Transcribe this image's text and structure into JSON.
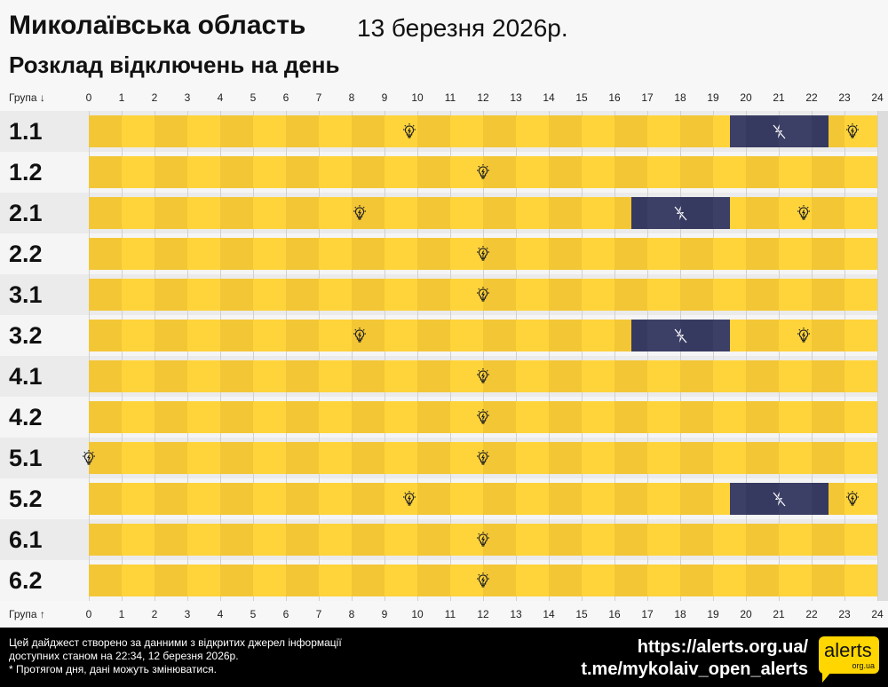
{
  "header": {
    "region": "Миколаївська область",
    "date": "13 березня 2026р.",
    "subtitle": "Розклад відключень на день"
  },
  "axis": {
    "top_label": "Група ↓",
    "bottom_label": "Група ↑",
    "hours": [
      "0",
      "1",
      "2",
      "3",
      "4",
      "5",
      "6",
      "7",
      "8",
      "9",
      "10",
      "11",
      "12",
      "13",
      "14",
      "15",
      "16",
      "17",
      "18",
      "19",
      "20",
      "21",
      "22",
      "23",
      "24"
    ]
  },
  "colors": {
    "on": "#ffd43a",
    "on_dark": "#f3c636",
    "off": "#3c3f66",
    "off_dark": "#363a60"
  },
  "icons": {
    "on": "lightbulb-icon",
    "off": "power-off-icon"
  },
  "groups": [
    {
      "name": "1.1",
      "segments": [
        {
          "state": "on",
          "from": 0,
          "to": 19.5
        },
        {
          "state": "off",
          "from": 19.5,
          "to": 22.5
        },
        {
          "state": "on",
          "from": 22.5,
          "to": 24
        }
      ]
    },
    {
      "name": "1.2",
      "segments": [
        {
          "state": "on",
          "from": 0,
          "to": 24
        }
      ]
    },
    {
      "name": "2.1",
      "segments": [
        {
          "state": "on",
          "from": 0,
          "to": 16.5
        },
        {
          "state": "off",
          "from": 16.5,
          "to": 19.5
        },
        {
          "state": "on",
          "from": 19.5,
          "to": 24
        }
      ]
    },
    {
      "name": "2.2",
      "segments": [
        {
          "state": "on",
          "from": 0,
          "to": 24
        }
      ]
    },
    {
      "name": "3.1",
      "segments": [
        {
          "state": "on",
          "from": 0,
          "to": 24
        }
      ]
    },
    {
      "name": "3.2",
      "segments": [
        {
          "state": "on",
          "from": 0,
          "to": 16.5
        },
        {
          "state": "off",
          "from": 16.5,
          "to": 19.5
        },
        {
          "state": "on",
          "from": 19.5,
          "to": 24
        }
      ]
    },
    {
      "name": "4.1",
      "segments": [
        {
          "state": "on",
          "from": 0,
          "to": 24
        }
      ]
    },
    {
      "name": "4.2",
      "segments": [
        {
          "state": "on",
          "from": 0,
          "to": 24
        }
      ]
    },
    {
      "name": "5.1",
      "segments": [
        {
          "state": "on",
          "from": 0,
          "to": 0
        },
        {
          "state": "on",
          "from": 0,
          "to": 24
        }
      ]
    },
    {
      "name": "5.2",
      "segments": [
        {
          "state": "on",
          "from": 0,
          "to": 19.5
        },
        {
          "state": "off",
          "from": 19.5,
          "to": 22.5
        },
        {
          "state": "on",
          "from": 22.5,
          "to": 24
        }
      ]
    },
    {
      "name": "6.1",
      "segments": [
        {
          "state": "on",
          "from": 0,
          "to": 24
        }
      ]
    },
    {
      "name": "6.2",
      "segments": [
        {
          "state": "on",
          "from": 0,
          "to": 24
        }
      ]
    }
  ],
  "footer": {
    "line1": "Цей дайджест створено за данними з відкритих джерел інформації",
    "line2": "доступних станом на 22:34, 12 березня 2026р.",
    "line3": "* Протягом дня, дані можуть змінюватися.",
    "link1": "https://alerts.org.ua/",
    "link2": "t.me/mykolaiv_open_alerts",
    "logo_main": "alerts",
    "logo_sub": "org.ua"
  }
}
